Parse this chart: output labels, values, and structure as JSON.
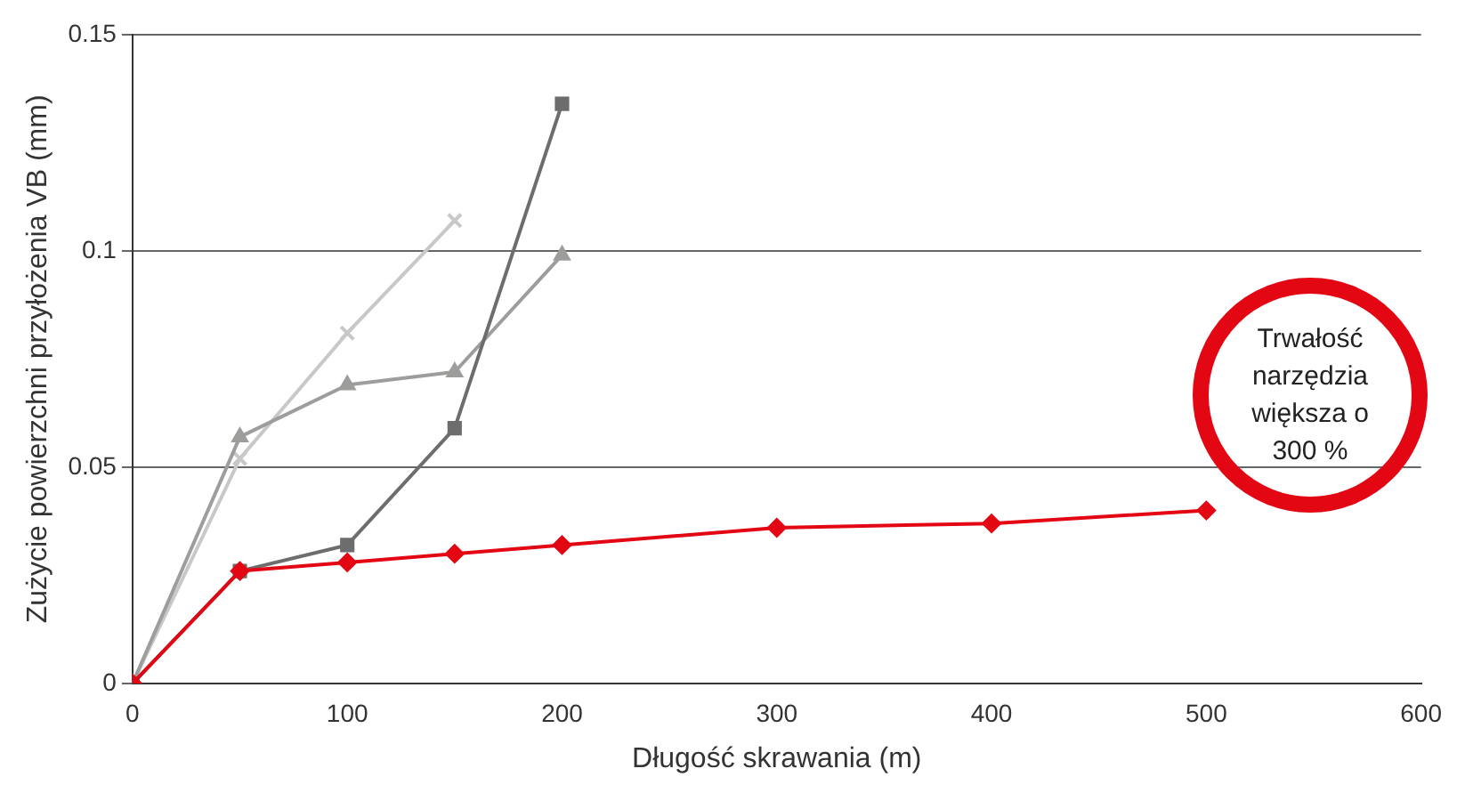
{
  "chart_data": {
    "type": "line",
    "xlabel": "Długość skrawania (m)",
    "ylabel": "Zużycie powierzchni przyłożenia VB (mm)",
    "xlim": [
      0,
      600
    ],
    "xticks": [
      0,
      100,
      200,
      300,
      400,
      500,
      600
    ],
    "ylim": [
      0,
      0.15
    ],
    "yticks": [
      0,
      0.05,
      0.1,
      0.15
    ],
    "grid": "y",
    "legend": false,
    "line_style": "solid",
    "annotations": [
      "Trwałość narzędzia większa o 300 %"
    ],
    "series": [
      {
        "color": "#c8c8c8",
        "marker": "cross",
        "x": [
          0,
          50,
          100,
          150
        ],
        "values": [
          0,
          0.052,
          0.081,
          0.107
        ]
      },
      {
        "color": "#9d9d9c",
        "marker": "triangle",
        "x": [
          0,
          50,
          100,
          150,
          200
        ],
        "values": [
          0,
          0.057,
          0.069,
          0.072,
          0.099
        ]
      },
      {
        "color": "#6d6d6e",
        "marker": "square",
        "x": [
          0,
          50,
          100,
          150,
          200
        ],
        "values": [
          0,
          0.026,
          0.032,
          0.059,
          0.134
        ]
      },
      {
        "color": "#e30613",
        "marker": "diamond",
        "x": [
          0,
          50,
          100,
          150,
          200,
          300,
          400,
          500
        ],
        "values": [
          0,
          0.026,
          0.028,
          0.03,
          0.032,
          0.036,
          0.037,
          0.04
        ]
      }
    ]
  }
}
